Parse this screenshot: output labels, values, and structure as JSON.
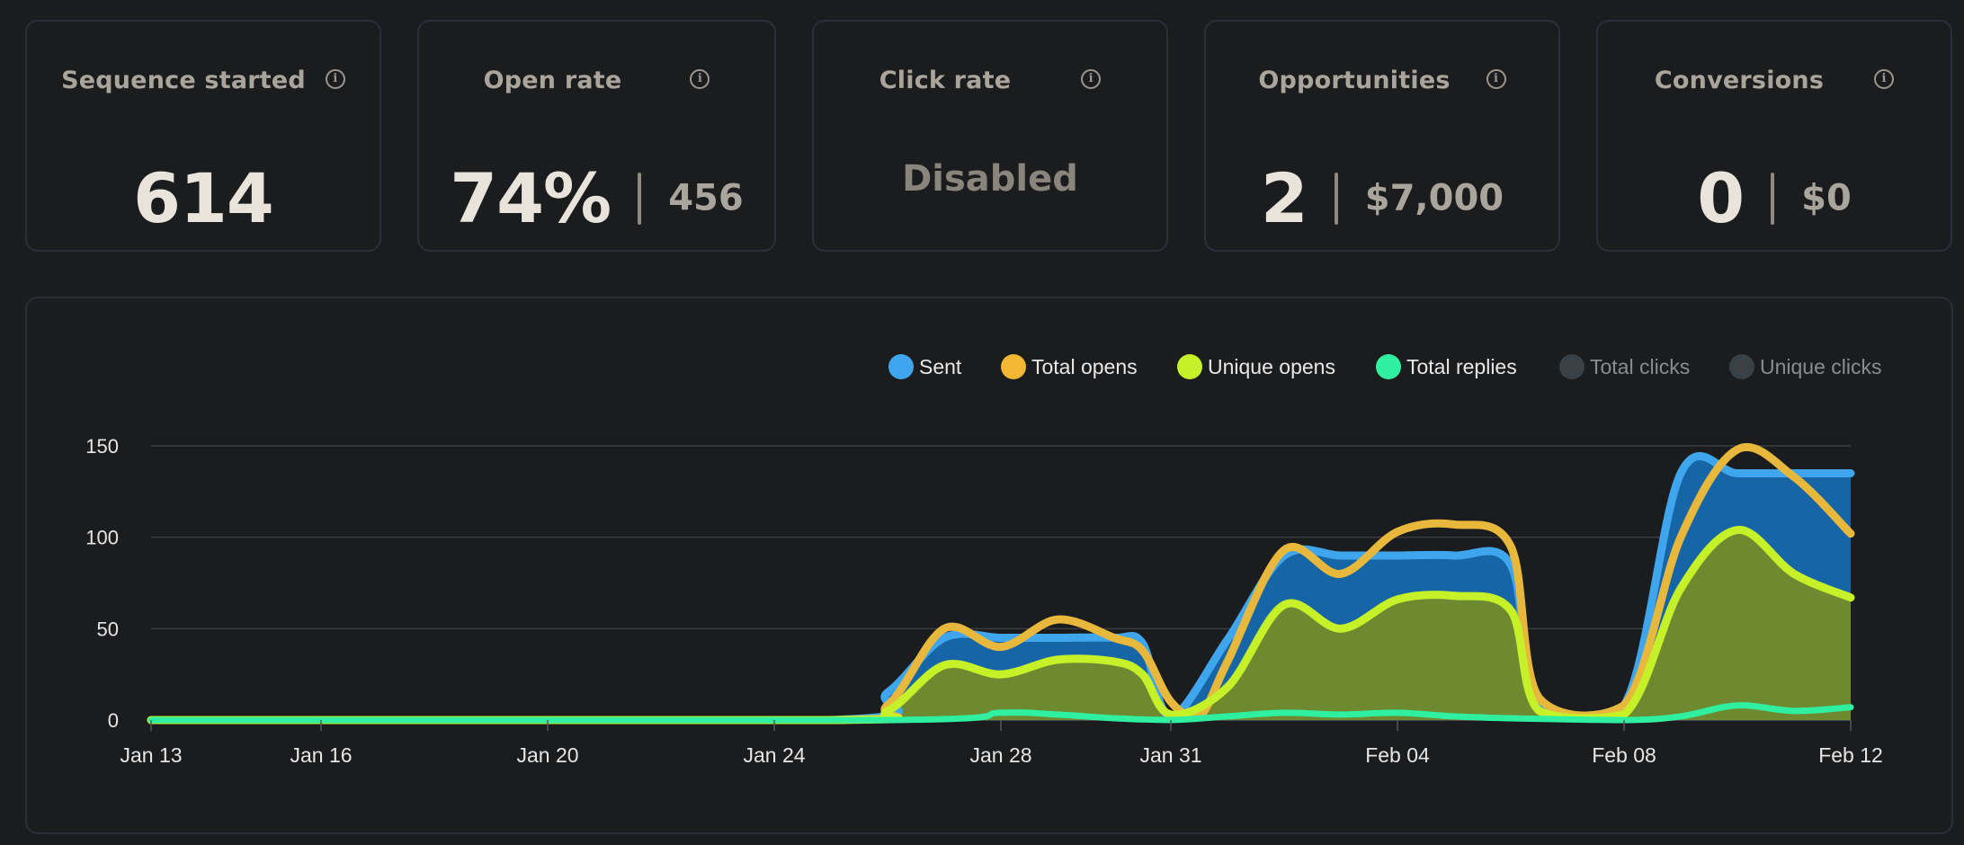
{
  "cards": [
    {
      "title": "Sequence started",
      "value": "614",
      "secondary": "",
      "disabled": ""
    },
    {
      "title": "Open rate",
      "value": "74%",
      "secondary": "456",
      "disabled": ""
    },
    {
      "title": "Click rate",
      "value": "",
      "secondary": "",
      "disabled": "Disabled"
    },
    {
      "title": "Opportunities",
      "value": "2",
      "secondary": "$7,000",
      "disabled": ""
    },
    {
      "title": "Conversions",
      "value": "0",
      "secondary": "$0",
      "disabled": ""
    }
  ],
  "colors": {
    "sent": "#3fa6ee",
    "sent_fill": "#1665a6",
    "total_opens": "#e8b83c",
    "unique_opens": "#c6f028",
    "unique_fill": "#6e8a31",
    "total_replies": "#2ef0a0",
    "inactive": "#3a4146"
  },
  "chart_data": {
    "type": "area",
    "legend": [
      {
        "name": "Sent",
        "color": "#3fa6ee",
        "active": true
      },
      {
        "name": "Total opens",
        "color": "#f2b733",
        "active": true
      },
      {
        "name": "Unique opens",
        "color": "#c6f028",
        "active": true
      },
      {
        "name": "Total replies",
        "color": "#2ef0a0",
        "active": true
      },
      {
        "name": "Total clicks",
        "color": "#3a4146",
        "active": false
      },
      {
        "name": "Unique clicks",
        "color": "#3a4146",
        "active": false
      }
    ],
    "legend_position": "top-right",
    "ylim": [
      0,
      150
    ],
    "yticks": [
      "0",
      "50",
      "100",
      "150"
    ],
    "xlim": [
      "2025-01-13",
      "2025-02-12"
    ],
    "xticks": [
      {
        "label": "Jan 13",
        "date": "2025-01-13"
      },
      {
        "label": "Jan 16",
        "date": "2025-01-16"
      },
      {
        "label": "Jan 20",
        "date": "2025-01-20"
      },
      {
        "label": "Jan 24",
        "date": "2025-01-24"
      },
      {
        "label": "Jan 28",
        "date": "2025-01-28"
      },
      {
        "label": "Jan 31",
        "date": "2025-01-31"
      },
      {
        "label": "Feb 04",
        "date": "2025-02-04"
      },
      {
        "label": "Feb 08",
        "date": "2025-02-08"
      },
      {
        "label": "Feb 12",
        "date": "2025-02-12"
      }
    ],
    "grid": true,
    "series": [
      {
        "name": "Sent",
        "points": [
          [
            "2025-01-13",
            0
          ],
          [
            "2025-01-25",
            0
          ],
          [
            "2025-01-26",
            15
          ],
          [
            "2025-01-27",
            45
          ],
          [
            "2025-01-28",
            45
          ],
          [
            "2025-01-29",
            45
          ],
          [
            "2025-01-30",
            45
          ],
          [
            "2025-01-30T12",
            42
          ],
          [
            "2025-01-31",
            2
          ],
          [
            "2025-02-01",
            44
          ],
          [
            "2025-02-02",
            90
          ],
          [
            "2025-02-03",
            90
          ],
          [
            "2025-02-04",
            90
          ],
          [
            "2025-02-05",
            90
          ],
          [
            "2025-02-06",
            85
          ],
          [
            "2025-02-06T12",
            8
          ],
          [
            "2025-02-08",
            8
          ],
          [
            "2025-02-09",
            135
          ],
          [
            "2025-02-10",
            135
          ],
          [
            "2025-02-11",
            135
          ],
          [
            "2025-02-12",
            135
          ]
        ]
      },
      {
        "name": "Total opens",
        "points": [
          [
            "2025-01-13",
            0
          ],
          [
            "2025-01-25",
            0
          ],
          [
            "2025-01-26",
            8
          ],
          [
            "2025-01-27",
            50
          ],
          [
            "2025-01-28",
            40
          ],
          [
            "2025-01-29",
            55
          ],
          [
            "2025-01-30",
            45
          ],
          [
            "2025-01-30T12",
            38
          ],
          [
            "2025-01-31",
            10
          ],
          [
            "2025-01-31T12",
            2
          ],
          [
            "2025-02-01",
            32
          ],
          [
            "2025-02-02",
            93
          ],
          [
            "2025-02-03",
            80
          ],
          [
            "2025-02-04",
            103
          ],
          [
            "2025-02-05",
            107
          ],
          [
            "2025-02-06",
            95
          ],
          [
            "2025-02-06T12",
            12
          ],
          [
            "2025-02-08",
            8
          ],
          [
            "2025-02-09",
            100
          ],
          [
            "2025-02-10",
            148
          ],
          [
            "2025-02-11",
            133
          ],
          [
            "2025-02-12",
            102
          ]
        ]
      },
      {
        "name": "Unique opens",
        "points": [
          [
            "2025-01-13",
            0
          ],
          [
            "2025-01-25",
            0
          ],
          [
            "2025-01-26",
            5
          ],
          [
            "2025-01-27",
            30
          ],
          [
            "2025-01-28",
            25
          ],
          [
            "2025-01-29",
            33
          ],
          [
            "2025-01-30",
            32
          ],
          [
            "2025-01-30T12",
            25
          ],
          [
            "2025-01-31",
            3
          ],
          [
            "2025-02-01",
            18
          ],
          [
            "2025-02-02",
            63
          ],
          [
            "2025-02-03",
            50
          ],
          [
            "2025-02-04",
            66
          ],
          [
            "2025-02-05",
            68
          ],
          [
            "2025-02-06",
            60
          ],
          [
            "2025-02-06T12",
            5
          ],
          [
            "2025-02-08",
            3
          ],
          [
            "2025-02-09",
            72
          ],
          [
            "2025-02-10",
            104
          ],
          [
            "2025-02-11",
            80
          ],
          [
            "2025-02-12",
            67
          ]
        ]
      },
      {
        "name": "Total replies",
        "points": [
          [
            "2025-01-13",
            0
          ],
          [
            "2025-01-26",
            0
          ],
          [
            "2025-01-28",
            4
          ],
          [
            "2025-01-29",
            3
          ],
          [
            "2025-01-30",
            1
          ],
          [
            "2025-01-31",
            0
          ],
          [
            "2025-02-01",
            2
          ],
          [
            "2025-02-02",
            4
          ],
          [
            "2025-02-03",
            3
          ],
          [
            "2025-02-04",
            4
          ],
          [
            "2025-02-05",
            2
          ],
          [
            "2025-02-06",
            1
          ],
          [
            "2025-02-08",
            0
          ],
          [
            "2025-02-09",
            2
          ],
          [
            "2025-02-10",
            8
          ],
          [
            "2025-02-11",
            5
          ],
          [
            "2025-02-12",
            7
          ]
        ]
      }
    ]
  }
}
